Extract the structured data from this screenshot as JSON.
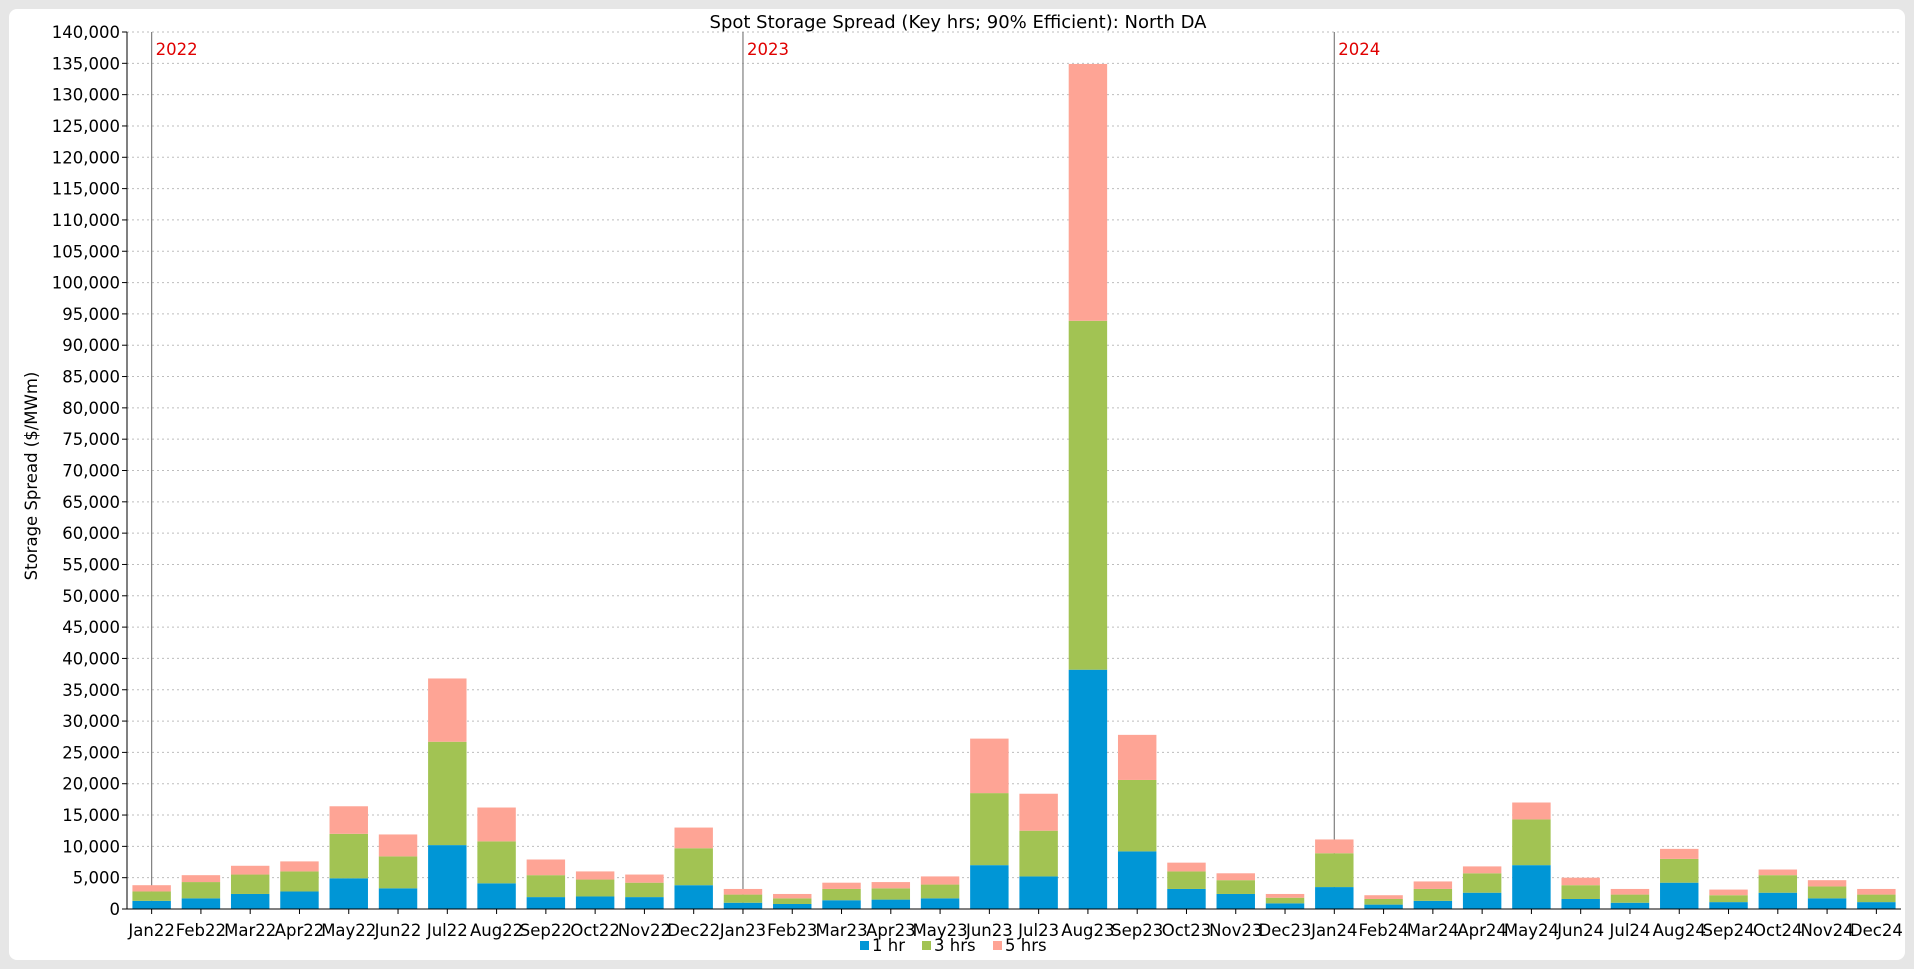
{
  "colors": {
    "series": [
      "#0096d6",
      "#a2c353",
      "#fea495"
    ],
    "grid": "#bdbdbd",
    "axis": "#000000",
    "year_marker_line": "#7f7f7f",
    "year_marker_text": "#e00000"
  },
  "chart_data": {
    "type": "bar",
    "stacked": true,
    "title": "Spot Storage Spread (Key hrs; 90% Efficient): North DA",
    "ylabel": "Storage Spread ($/MWm)",
    "xlabel": "",
    "ylim": [
      0,
      140000
    ],
    "ytick_step": 5000,
    "ytick_labels": [
      "0",
      "5,000",
      "10,000",
      "15,000",
      "20,000",
      "25,000",
      "30,000",
      "35,000",
      "40,000",
      "45,000",
      "50,000",
      "55,000",
      "60,000",
      "65,000",
      "70,000",
      "75,000",
      "80,000",
      "85,000",
      "90,000",
      "95,000",
      "100,000",
      "105,000",
      "110,000",
      "115,000",
      "120,000",
      "125,000",
      "130,000",
      "135,000",
      "140,000"
    ],
    "grid": true,
    "legend_position": "bottom-center",
    "categories": [
      "Jan22",
      "Feb22",
      "Mar22",
      "Apr22",
      "May22",
      "Jun22",
      "Jul22",
      "Aug22",
      "Sep22",
      "Oct22",
      "Nov22",
      "Dec22",
      "Jan23",
      "Feb23",
      "Mar23",
      "Apr23",
      "May23",
      "Jun23",
      "Jul23",
      "Aug23",
      "Sep23",
      "Oct23",
      "Nov23",
      "Dec23",
      "Jan24",
      "Feb24",
      "Mar24",
      "Apr24",
      "May24",
      "Jun24",
      "Jul24",
      "Aug24",
      "Sep24",
      "Oct24",
      "Nov24",
      "Dec24"
    ],
    "series": [
      {
        "name": "1 hr",
        "values": [
          1300,
          1700,
          2400,
          2800,
          4900,
          3300,
          10200,
          4100,
          1900,
          2000,
          1900,
          3800,
          1000,
          800,
          1400,
          1500,
          1700,
          7000,
          5200,
          38200,
          9200,
          3200,
          2400,
          900,
          3500,
          700,
          1300,
          2600,
          7000,
          1600,
          1000,
          4200,
          1100,
          2600,
          1700,
          1100
        ]
      },
      {
        "name": "3 hrs",
        "values": [
          1500,
          2600,
          3100,
          3200,
          7100,
          5100,
          16500,
          6700,
          3500,
          2700,
          2300,
          5900,
          1300,
          900,
          1800,
          1800,
          2200,
          11500,
          7300,
          55700,
          11400,
          2800,
          2200,
          900,
          5400,
          900,
          1900,
          3100,
          7300,
          2200,
          1300,
          3800,
          1100,
          2800,
          1900,
          1200
        ]
      },
      {
        "name": "5 hrs",
        "values": [
          1000,
          1100,
          1400,
          1600,
          4400,
          3500,
          10100,
          5400,
          2500,
          1300,
          1300,
          3300,
          900,
          700,
          1000,
          1000,
          1300,
          8700,
          5900,
          41000,
          7200,
          1400,
          1100,
          600,
          2200,
          600,
          1200,
          1100,
          2700,
          1200,
          900,
          1600,
          900,
          900,
          1000,
          900
        ]
      }
    ],
    "year_markers": [
      {
        "label": "2022",
        "at": "Jan22"
      },
      {
        "label": "2023",
        "at": "Jan23"
      },
      {
        "label": "2024",
        "at": "Jan24"
      }
    ]
  }
}
